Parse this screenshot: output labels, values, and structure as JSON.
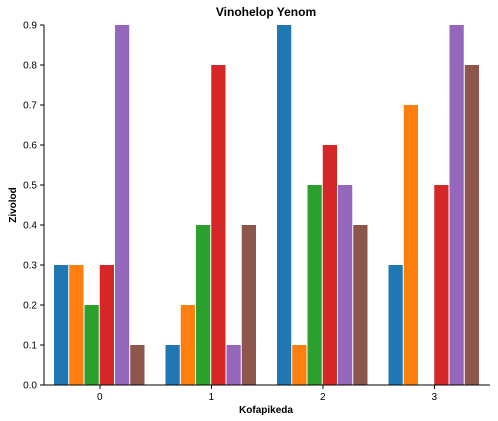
{
  "chart_data": {
    "type": "bar",
    "title": "Vinohelop Yenom",
    "xlabel": "Kofapikeda",
    "ylabel": "Zivolod",
    "categories": [
      "0",
      "1",
      "2",
      "3"
    ],
    "ylim": [
      0,
      0.9
    ],
    "yticks": [
      "0.0",
      "0.1",
      "0.2",
      "0.3",
      "0.4",
      "0.5",
      "0.6",
      "0.7",
      "0.8",
      "0.9"
    ],
    "grid": false,
    "legend": "none",
    "series": [
      {
        "color": "#1f77b4",
        "values": [
          0.3,
          0.1,
          0.9,
          0.3
        ]
      },
      {
        "color": "#ff7f0e",
        "values": [
          0.3,
          0.2,
          0.1,
          0.7
        ]
      },
      {
        "color": "#2ca02c",
        "values": [
          0.2,
          0.4,
          0.5,
          0.0
        ]
      },
      {
        "color": "#d62728",
        "values": [
          0.3,
          0.8,
          0.6,
          0.5
        ]
      },
      {
        "color": "#9467bd",
        "values": [
          0.9,
          0.1,
          0.5,
          0.9
        ]
      },
      {
        "color": "#8c564b",
        "values": [
          0.1,
          0.4,
          0.4,
          0.8
        ]
      }
    ]
  }
}
